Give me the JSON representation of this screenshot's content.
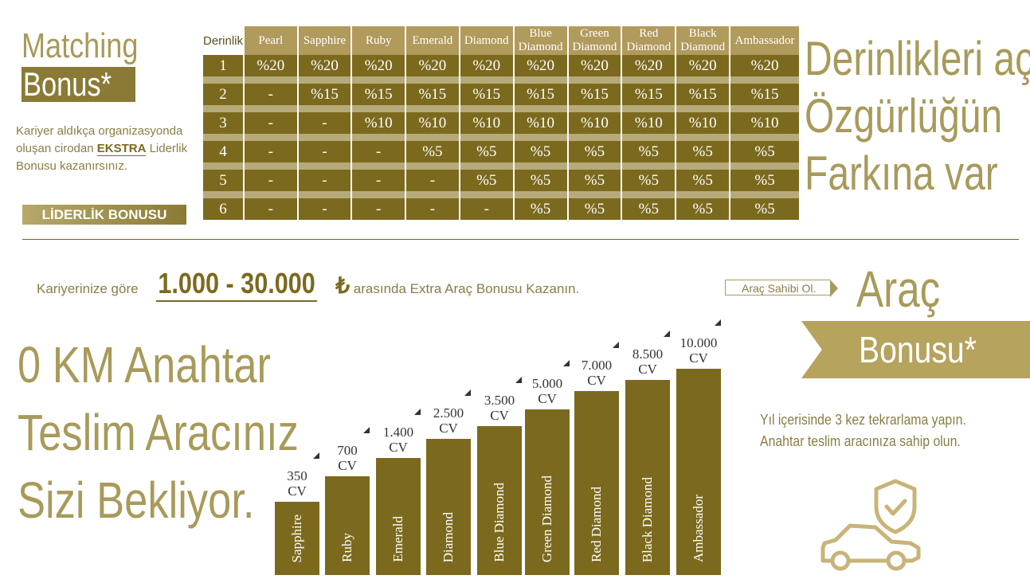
{
  "matching": {
    "title_line1": "Matching",
    "title_line2": "Bonus*",
    "desc_part1": "Kariyer aldıkça organizasyonda oluşan cirodan ",
    "desc_bold": "EKSTRA",
    "desc_part2": " Liderlik Bonusu kazanırsınız.",
    "button_label": "LİDERLİK BONUSU"
  },
  "table": {
    "corner": "Derinlik",
    "headers": [
      "Pearl",
      "Sapphire",
      "Ruby",
      "Emerald",
      "Diamond",
      "Blue Diamond",
      "Green Diamond",
      "Red Diamond",
      "Black Diamond",
      "Ambassador"
    ],
    "rows": [
      [
        "1",
        "%20",
        "%20",
        "%20",
        "%20",
        "%20",
        "%20",
        "%20",
        "%20",
        "%20",
        "%20"
      ],
      [
        "2",
        "-",
        "%15",
        "%15",
        "%15",
        "%15",
        "%15",
        "%15",
        "%15",
        "%15",
        "%15"
      ],
      [
        "3",
        "-",
        "-",
        "%10",
        "%10",
        "%10",
        "%10",
        "%10",
        "%10",
        "%10",
        "%10"
      ],
      [
        "4",
        "-",
        "-",
        "-",
        "%5",
        "%5",
        "%5",
        "%5",
        "%5",
        "%5",
        "%5"
      ],
      [
        "5",
        "-",
        "-",
        "-",
        "-",
        "%5",
        "%5",
        "%5",
        "%5",
        "%5",
        "%5"
      ],
      [
        "6",
        "-",
        "-",
        "-",
        "-",
        "-",
        "%5",
        "%5",
        "%5",
        "%5",
        "%5"
      ]
    ]
  },
  "headline": [
    "Derinlikleri aç",
    "Özgürlüğün",
    "Farkına var"
  ],
  "car": {
    "range_prefix": "Kariyerinize göre",
    "range_value": "1.000 - 30.000",
    "currency": "₺",
    "range_suffix": "arasında Extra Araç Bonusu Kazanın.",
    "owner_tag": "Araç Sahibi Ol.",
    "title": "Araç",
    "banner": "Bonusu*",
    "desc_line1": "Yıl içerisinde 3 kez tekrarlama yapın.",
    "desc_line2": "Anahtar teslim aracınıza sahip olun.",
    "okm_lines": [
      "0 KM Anahtar",
      "Teslim Aracınız",
      "Sizi Bekliyor."
    ]
  },
  "bars": [
    {
      "name": "Sapphire",
      "cv": "350",
      "unit": "CV",
      "value": 350
    },
    {
      "name": "Ruby",
      "cv": "700",
      "unit": "CV",
      "value": 700
    },
    {
      "name": "Emerald",
      "cv": "1.400",
      "unit": "CV",
      "value": 1400
    },
    {
      "name": "Diamond",
      "cv": "2.500",
      "unit": "CV",
      "value": 2500
    },
    {
      "name": "Blue Diamond",
      "cv": "3.500",
      "unit": "CV",
      "value": 3500
    },
    {
      "name": "Green Diamond",
      "cv": "5.000",
      "unit": "CV",
      "value": 5000
    },
    {
      "name": "Red Diamond",
      "cv": "7.000",
      "unit": "CV",
      "value": 7000
    },
    {
      "name": "Black Diamond",
      "cv": "8.500",
      "unit": "CV",
      "value": 8500
    },
    {
      "name": "Ambassador",
      "cv": "10.000",
      "unit": "CV",
      "value": 10000
    }
  ],
  "colors": {
    "gold": "#a89a5a",
    "olive": "#7b6a1e"
  },
  "icons": [
    "car-shield-icon"
  ]
}
